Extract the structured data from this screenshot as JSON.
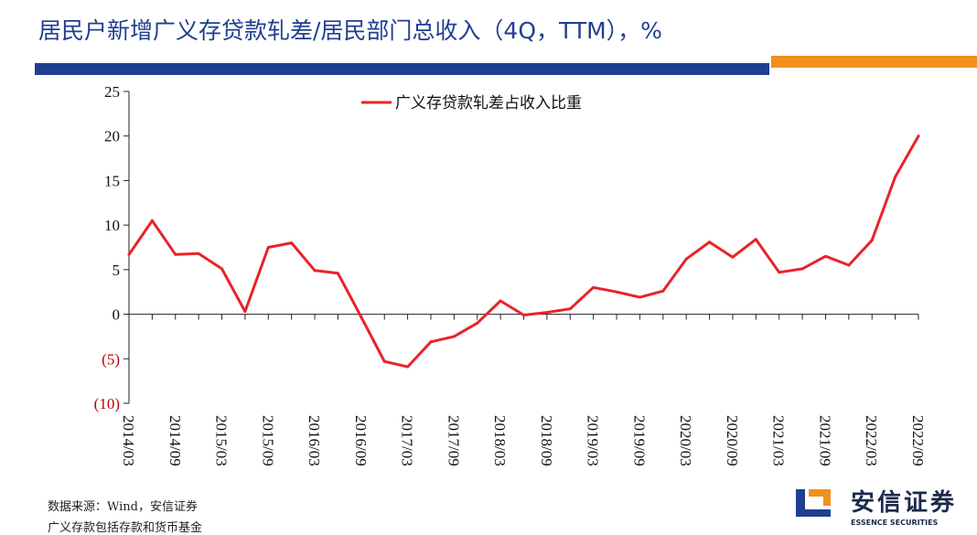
{
  "header": {
    "title": "居民户新增广义存贷款轧差/居民部门总收入（4Q，TTM），%",
    "accent_blue": "#1f3f8f",
    "accent_orange": "#f0901e"
  },
  "chart_data": {
    "type": "line",
    "title": "",
    "xlabel": "",
    "ylabel": "",
    "ylim": [
      -10,
      25
    ],
    "yticks": [
      {
        "value": 25,
        "label": "25"
      },
      {
        "value": 20,
        "label": "20"
      },
      {
        "value": 15,
        "label": "15"
      },
      {
        "value": 10,
        "label": "10"
      },
      {
        "value": 5,
        "label": "5"
      },
      {
        "value": 0,
        "label": "0"
      },
      {
        "value": -5,
        "label": "(5)"
      },
      {
        "value": -10,
        "label": "(10)"
      }
    ],
    "x": [
      "2014/03",
      "2014/06",
      "2014/09",
      "2014/12",
      "2015/03",
      "2015/06",
      "2015/09",
      "2015/12",
      "2016/03",
      "2016/06",
      "2016/09",
      "2016/12",
      "2017/03",
      "2017/06",
      "2017/09",
      "2017/12",
      "2018/03",
      "2018/06",
      "2018/09",
      "2018/12",
      "2019/03",
      "2019/06",
      "2019/09",
      "2019/12",
      "2020/03",
      "2020/06",
      "2020/09",
      "2020/12",
      "2021/03",
      "2021/06",
      "2021/09",
      "2021/12",
      "2022/03",
      "2022/06",
      "2022/09"
    ],
    "xtick_labels": [
      "2014/03",
      "2014/09",
      "2015/03",
      "2015/09",
      "2016/03",
      "2016/09",
      "2017/03",
      "2017/09",
      "2018/03",
      "2018/09",
      "2019/03",
      "2019/09",
      "2020/03",
      "2020/09",
      "2021/03",
      "2021/09",
      "2022/03",
      "2022/09"
    ],
    "series": [
      {
        "name": "广义存贷款轧差占收入比重",
        "color": "#e8232a",
        "values": [
          6.7,
          10.5,
          6.7,
          6.8,
          5.1,
          0.3,
          7.5,
          8.0,
          4.9,
          4.6,
          -0.3,
          -5.3,
          -5.9,
          -3.1,
          -2.5,
          -1.0,
          1.5,
          -0.1,
          0.2,
          0.6,
          3.0,
          2.5,
          1.9,
          2.6,
          6.2,
          8.1,
          6.4,
          8.4,
          4.7,
          5.1,
          6.5,
          5.5,
          8.3,
          15.4,
          20.0
        ]
      }
    ],
    "legend_position": "top-center",
    "negative_label_color": "#c00000",
    "grid": false
  },
  "footnotes": {
    "source": "数据来源：Wind，安信证券",
    "note": "广义存款包括存款和货币基金"
  },
  "logo": {
    "name_cn": "安信证券",
    "name_en": "ESSENCE SECURITIES",
    "mark_blue": "#1f3f8f",
    "mark_orange": "#f0901e"
  }
}
